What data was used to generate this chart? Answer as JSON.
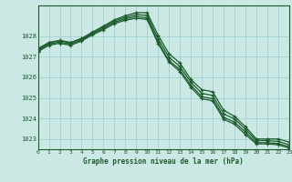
{
  "xlabel": "Graphe pression niveau de la mer (hPa)",
  "xlim": [
    0,
    23
  ],
  "ylim": [
    1022.5,
    1029.5
  ],
  "yticks": [
    1023,
    1024,
    1025,
    1026,
    1027,
    1028
  ],
  "xticks": [
    0,
    1,
    2,
    3,
    4,
    5,
    6,
    7,
    8,
    9,
    10,
    11,
    12,
    13,
    14,
    15,
    16,
    17,
    18,
    19,
    20,
    21,
    22,
    23
  ],
  "background_color": "#cce8e4",
  "grid_color": "#99cccc",
  "line_color": "#1a5c2a",
  "series": [
    [
      1027.4,
      1027.7,
      1027.8,
      1027.7,
      1027.9,
      1028.2,
      1028.5,
      1028.8,
      1029.0,
      1029.15,
      1029.15,
      1028.05,
      1027.15,
      1026.7,
      1025.9,
      1025.4,
      1025.3,
      1024.4,
      1024.1,
      1023.6,
      1023.0,
      1023.0,
      1023.0,
      1022.85
    ],
    [
      1027.35,
      1027.68,
      1027.78,
      1027.68,
      1027.87,
      1028.17,
      1028.45,
      1028.75,
      1028.92,
      1029.05,
      1029.02,
      1027.88,
      1026.98,
      1026.53,
      1025.77,
      1025.22,
      1025.12,
      1024.22,
      1023.98,
      1023.48,
      1022.92,
      1022.92,
      1022.88,
      1022.72
    ],
    [
      1027.3,
      1027.62,
      1027.72,
      1027.62,
      1027.82,
      1028.12,
      1028.38,
      1028.68,
      1028.85,
      1028.96,
      1028.9,
      1027.72,
      1026.82,
      1026.38,
      1025.62,
      1025.06,
      1024.96,
      1024.06,
      1023.82,
      1023.34,
      1022.82,
      1022.82,
      1022.78,
      1022.62
    ],
    [
      1027.25,
      1027.56,
      1027.66,
      1027.56,
      1027.77,
      1028.07,
      1028.32,
      1028.62,
      1028.78,
      1028.88,
      1028.82,
      1027.65,
      1026.75,
      1026.28,
      1025.52,
      1024.96,
      1024.86,
      1023.96,
      1023.72,
      1023.22,
      1022.76,
      1022.76,
      1022.72,
      1022.56
    ]
  ]
}
